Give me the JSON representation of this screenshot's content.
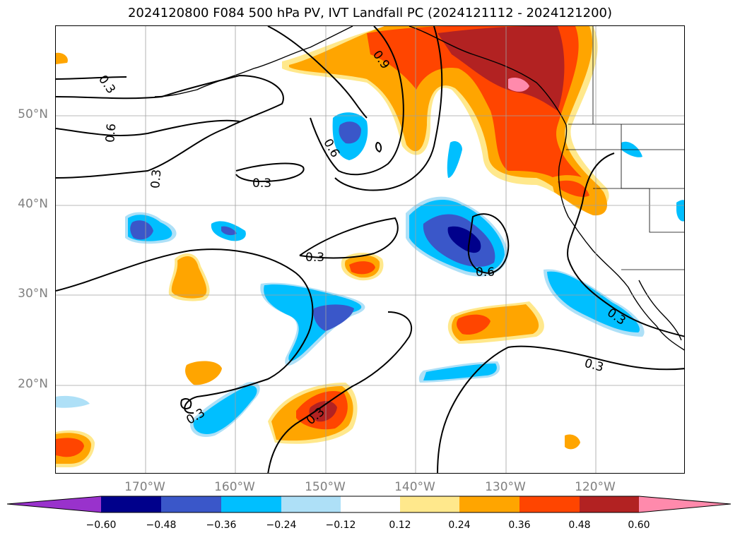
{
  "title": "2024120800 F084 500 hPa PV, IVT Landfall PC (2024121112 - 2024121200)",
  "lat_labels": [
    "50°N",
    "40°N",
    "30°N",
    "20°N"
  ],
  "lon_labels": [
    "170°W",
    "160°W",
    "150°W",
    "140°W",
    "130°W",
    "120°W"
  ],
  "contour_labels": [
    "0.3",
    "0.6",
    "0.3",
    "0.3",
    "0.9",
    "0.6",
    "0.3",
    "0.6",
    "0.3",
    "0.3",
    "0.3",
    "0.3"
  ],
  "colorbar": {
    "ticks": [
      "−0.60",
      "−0.48",
      "−0.36",
      "−0.24",
      "−0.12",
      "0.12",
      "0.24",
      "0.36",
      "0.48",
      "0.60"
    ],
    "colors": {
      "under": "#9932cc",
      "neg_060": "#00008b",
      "neg_048": "#3a57c9",
      "neg_036": "#00bfff",
      "neg_024": "#aee0f7",
      "zero": "#ffffff",
      "pos_012": "#ffe88c",
      "pos_024": "#ffa500",
      "pos_036": "#ff4500",
      "pos_048": "#b22222",
      "over": "#ff8aac"
    }
  }
}
